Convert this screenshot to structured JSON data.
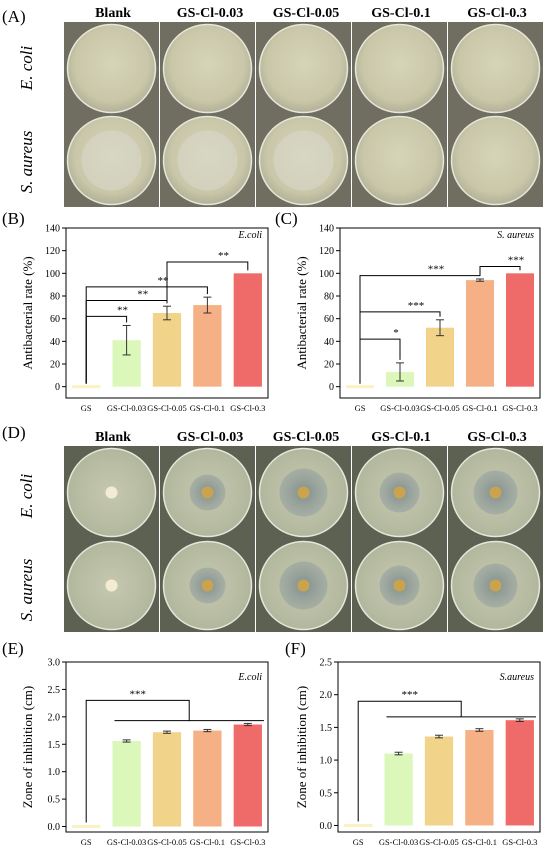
{
  "panel_labels": {
    "A": "(A)",
    "B": "(B)",
    "C": "(C)",
    "D": "(D)",
    "E": "(E)",
    "F": "(F)"
  },
  "photo_grid_A": {
    "columns": [
      "Blank",
      "GS-Cl-0.03",
      "GS-Cl-0.05",
      "GS-Cl-0.1",
      "GS-Cl-0.3"
    ],
    "rows": [
      "E. coli",
      "S. aureus"
    ]
  },
  "photo_grid_D": {
    "columns": [
      "Blank",
      "GS-Cl-0.03",
      "GS-Cl-0.05",
      "GS-Cl-0.1",
      "GS-Cl-0.3"
    ],
    "rows": [
      "E. coli",
      "S. aureus"
    ]
  },
  "colors": [
    "#fbf2c4",
    "#dcf7ba",
    "#f1d38a",
    "#f5b185",
    "#ef6b69"
  ],
  "chart_data": [
    {
      "id": "B",
      "type": "bar",
      "categories": [
        "GS",
        "GS-Cl-0.03",
        "GS-Cl-0.05",
        "GS-Cl-0.1",
        "GS-Cl-0.3"
      ],
      "values": [
        0,
        41,
        65,
        72,
        100
      ],
      "errors": [
        0,
        13,
        6,
        7,
        0
      ],
      "ylabel": "Antibacterial rate (%)",
      "legend_text": "E.coli",
      "ylim": [
        -10,
        140
      ],
      "yticks": [
        0,
        20,
        40,
        60,
        80,
        100,
        120,
        140
      ],
      "brackets": [
        {
          "from": 0,
          "to": 1,
          "level": 62,
          "label": "**"
        },
        {
          "from": 0,
          "to": 2,
          "level": 76,
          "label": "**"
        },
        {
          "from": 0,
          "to": 3,
          "level": 88,
          "label": "**"
        },
        {
          "from": 2,
          "to": 4,
          "level": 110,
          "label": "**"
        }
      ]
    },
    {
      "id": "C",
      "type": "bar",
      "categories": [
        "GS",
        "GS-Cl-0.03",
        "GS-Cl-0.05",
        "GS-Cl-0.1",
        "GS-Cl-0.3"
      ],
      "values": [
        0,
        13,
        52,
        94,
        100
      ],
      "errors": [
        0,
        8,
        7,
        1,
        0
      ],
      "ylabel": "Antibacterial rate (%)",
      "legend_text": "S. aureus",
      "ylim": [
        -10,
        140
      ],
      "yticks": [
        0,
        20,
        40,
        60,
        80,
        100,
        120,
        140
      ],
      "brackets": [
        {
          "from": 0,
          "to": 1,
          "level": 42,
          "label": "*"
        },
        {
          "from": 0,
          "to": 2,
          "level": 66,
          "label": "***"
        },
        {
          "from": 0,
          "to": 3,
          "level": 98,
          "label": "***"
        },
        {
          "from": 3,
          "to": 4,
          "level": 106,
          "label": "***"
        }
      ]
    },
    {
      "id": "E",
      "type": "bar",
      "categories": [
        "GS",
        "GS-Cl-0.03",
        "GS-Cl-0.05",
        "GS-Cl-0.1",
        "GS-Cl-0.3"
      ],
      "values": [
        0,
        1.56,
        1.72,
        1.75,
        1.86
      ],
      "errors": [
        0,
        0.02,
        0.02,
        0.02,
        0.02
      ],
      "ylabel": "Zone of inhibition (cm)",
      "legend_text": "E.coli",
      "ylim": [
        -0.1,
        3.0
      ],
      "yticks": [
        0.0,
        0.5,
        1.0,
        1.5,
        2.0,
        2.5,
        3.0
      ],
      "brackets": [
        {
          "from": 0,
          "to": [
            1,
            4
          ],
          "level": 2.3,
          "label": "***",
          "group_level": 1.93
        }
      ]
    },
    {
      "id": "F",
      "type": "bar",
      "categories": [
        "GS",
        "GS-Cl-0.03",
        "GS-Cl-0.05",
        "GS-Cl-0.1",
        "GS-Cl-0.3"
      ],
      "values": [
        0,
        1.1,
        1.36,
        1.46,
        1.61
      ],
      "errors": [
        0,
        0.02,
        0.02,
        0.02,
        0.02
      ],
      "ylabel": "Zone of inhibition (cm)",
      "legend_text": "S.aureus",
      "ylim": [
        -0.1,
        2.5
      ],
      "yticks": [
        0.0,
        0.5,
        1.0,
        1.5,
        2.0,
        2.5
      ],
      "brackets": [
        {
          "from": 0,
          "to": [
            1,
            4
          ],
          "level": 1.9,
          "label": "***",
          "group_level": 1.66
        }
      ]
    }
  ]
}
